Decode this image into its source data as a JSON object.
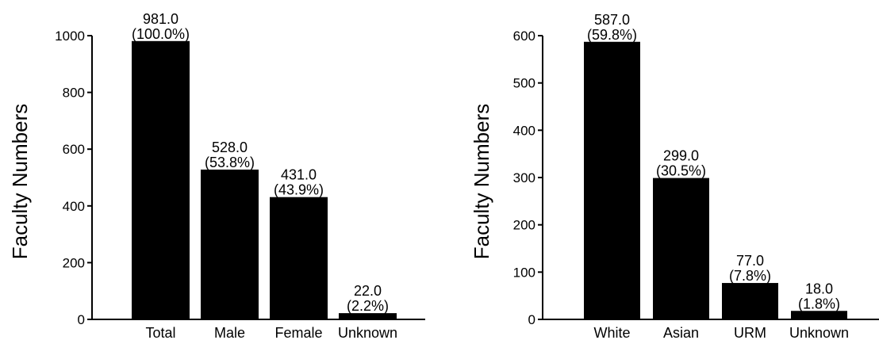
{
  "chart_data": [
    {
      "type": "bar",
      "categories": [
        "Total",
        "Male",
        "Female",
        "Unknown"
      ],
      "values": [
        981.0,
        528.0,
        431.0,
        22.0
      ],
      "value_labels": [
        "981.0",
        "528.0",
        "431.0",
        "22.0"
      ],
      "percent_labels": [
        "(100.0%)",
        "(53.8%)",
        "(43.9%)",
        "(2.2%)"
      ],
      "ylabel": "Faculty Numbers",
      "ylim": [
        0,
        1000
      ],
      "yticks": [
        0,
        200,
        400,
        600,
        800,
        1000
      ],
      "grid": false,
      "bar_color": "#000000"
    },
    {
      "type": "bar",
      "categories": [
        "White",
        "Asian",
        "URM",
        "Unknown"
      ],
      "values": [
        587.0,
        299.0,
        77.0,
        18.0
      ],
      "value_labels": [
        "587.0",
        "299.0",
        "77.0",
        "18.0"
      ],
      "percent_labels": [
        "(59.8%)",
        "(30.5%)",
        "(7.8%)",
        "(1.8%)"
      ],
      "ylabel": "Faculty Numbers",
      "ylim": [
        0,
        600
      ],
      "yticks": [
        0,
        100,
        200,
        300,
        400,
        500,
        600
      ],
      "grid": false,
      "bar_color": "#000000"
    }
  ]
}
